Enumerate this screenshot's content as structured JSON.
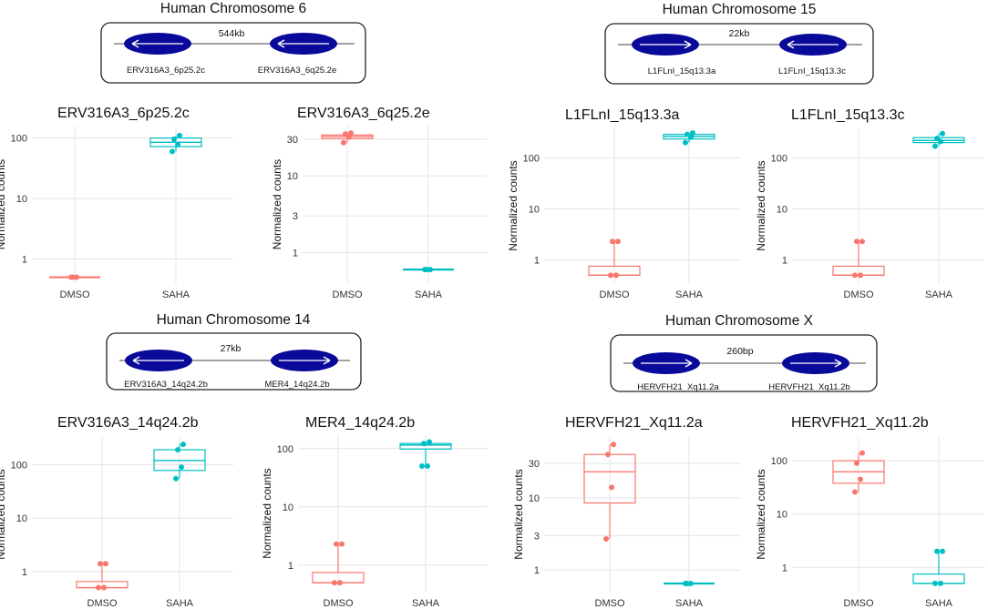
{
  "chart_data": {
    "type": "box",
    "colors": {
      "DMSO": "#F8766D",
      "SAHA": "#00BFC4",
      "element": "#0a0a9a",
      "frame": "#222222"
    },
    "chromosomes": [
      {
        "title": "Human Chromosome 6",
        "distance": "544kb",
        "elements": [
          {
            "label": "ERV316A3_6p25.2c",
            "direction": "left"
          },
          {
            "label": "ERV316A3_6q25.2e",
            "direction": "left"
          }
        ]
      },
      {
        "title": "Human Chromosome 15",
        "distance": "22kb",
        "elements": [
          {
            "label": "L1FLnI_15q13.3a",
            "direction": "right"
          },
          {
            "label": "L1FLnI_15q13.3c",
            "direction": "left"
          }
        ]
      },
      {
        "title": "Human Chromosome 14",
        "distance": "27kb",
        "elements": [
          {
            "label": "ERV316A3_14q24.2b",
            "direction": "left"
          },
          {
            "label": "MER4_14q24.2b",
            "direction": "right"
          }
        ]
      },
      {
        "title": "Human Chromosome X",
        "distance": "260bp",
        "elements": [
          {
            "label": "HERVFH21_Xq11.2a",
            "direction": "right"
          },
          {
            "label": "HERVFH21_Xq11.2b",
            "direction": "right"
          }
        ]
      }
    ],
    "panels": [
      {
        "title": "ERV316A3_6p25.2c",
        "ylabel": "Normalized counts",
        "yscale": "log10",
        "ylim": [
          0.4,
          160
        ],
        "yticks": [
          {
            "v": 1,
            "label": "1"
          },
          {
            "v": 10,
            "label": "10"
          },
          {
            "v": 100,
            "label": "100"
          }
        ],
        "categories": [
          "DMSO",
          "SAHA"
        ],
        "groups": [
          {
            "name": "DMSO",
            "min": 0.5,
            "q1": 0.5,
            "median": 0.5,
            "q3": 0.5,
            "max": 0.5,
            "points": [
              0.5,
              0.5,
              0.5
            ]
          },
          {
            "name": "SAHA",
            "min": 60,
            "q1": 72,
            "median": 85,
            "q3": 100,
            "max": 110,
            "points": [
              60,
              78,
              95,
              110
            ]
          }
        ]
      },
      {
        "title": "ERV316A3_6q25.2e",
        "ylabel": "Normalized counts",
        "yscale": "log10",
        "ylim": [
          0.4,
          45
        ],
        "yticks": [
          {
            "v": 1,
            "label": "1"
          },
          {
            "v": 3,
            "label": "3"
          },
          {
            "v": 10,
            "label": "10"
          },
          {
            "v": 30,
            "label": "30"
          }
        ],
        "categories": [
          "DMSO",
          "SAHA"
        ],
        "groups": [
          {
            "name": "DMSO",
            "min": 27,
            "q1": 30.5,
            "median": 32.5,
            "q3": 34,
            "max": 36,
            "points": [
              27,
              32,
              35,
              36
            ]
          },
          {
            "name": "SAHA",
            "min": 0.6,
            "q1": 0.6,
            "median": 0.6,
            "q3": 0.6,
            "max": 0.6,
            "points": [
              0.6,
              0.6,
              0.6
            ]
          }
        ]
      },
      {
        "title": "L1FLnI_15q13.3a",
        "ylabel": "Normalized counts",
        "yscale": "log10",
        "ylim": [
          0.35,
          380
        ],
        "yticks": [
          {
            "v": 1,
            "label": "1"
          },
          {
            "v": 10,
            "label": "10"
          },
          {
            "v": 100,
            "label": "100"
          }
        ],
        "categories": [
          "DMSO",
          "SAHA"
        ],
        "groups": [
          {
            "name": "DMSO",
            "min": 0.5,
            "q1": 0.5,
            "median": 0.5,
            "q3": 0.75,
            "max": 2.3,
            "points": [
              0.5,
              0.5,
              2.3,
              2.3
            ]
          },
          {
            "name": "SAHA",
            "min": 200,
            "q1": 235,
            "median": 265,
            "q3": 290,
            "max": 310,
            "points": [
              200,
              255,
              290,
              310
            ]
          }
        ]
      },
      {
        "title": "L1FLnI_15q13.3c",
        "ylabel": "Normalized counts",
        "yscale": "log10",
        "ylim": [
          0.35,
          380
        ],
        "yticks": [
          {
            "v": 1,
            "label": "1"
          },
          {
            "v": 10,
            "label": "10"
          },
          {
            "v": 100,
            "label": "100"
          }
        ],
        "categories": [
          "DMSO",
          "SAHA"
        ],
        "groups": [
          {
            "name": "DMSO",
            "min": 0.5,
            "q1": 0.5,
            "median": 0.5,
            "q3": 0.75,
            "max": 2.3,
            "points": [
              0.5,
              0.5,
              2.3,
              2.3
            ]
          },
          {
            "name": "SAHA",
            "min": 170,
            "q1": 200,
            "median": 220,
            "q3": 250,
            "max": 300,
            "points": [
              170,
              210,
              240,
              300
            ]
          }
        ]
      },
      {
        "title": "ERV316A3_14q24.2b",
        "ylabel": "Normalized counts",
        "yscale": "log10",
        "ylim": [
          0.42,
          330
        ],
        "yticks": [
          {
            "v": 1,
            "label": "1"
          },
          {
            "v": 10,
            "label": "10"
          },
          {
            "v": 100,
            "label": "100"
          }
        ],
        "categories": [
          "DMSO",
          "SAHA"
        ],
        "groups": [
          {
            "name": "DMSO",
            "min": 0.5,
            "q1": 0.5,
            "median": 0.5,
            "q3": 0.65,
            "max": 1.4,
            "points": [
              0.5,
              0.5,
              1.4,
              1.4
            ]
          },
          {
            "name": "SAHA",
            "min": 55,
            "q1": 78,
            "median": 120,
            "q3": 190,
            "max": 240,
            "points": [
              55,
              90,
              190,
              240
            ]
          }
        ]
      },
      {
        "title": "MER4_14q24.2b",
        "ylabel": "Normalized counts",
        "yscale": "log10",
        "ylim": [
          0.35,
          170
        ],
        "yticks": [
          {
            "v": 1,
            "label": "1"
          },
          {
            "v": 10,
            "label": "10"
          },
          {
            "v": 100,
            "label": "100"
          }
        ],
        "categories": [
          "DMSO",
          "SAHA"
        ],
        "groups": [
          {
            "name": "DMSO",
            "min": 0.5,
            "q1": 0.5,
            "median": 0.5,
            "q3": 0.75,
            "max": 2.3,
            "points": [
              0.5,
              0.5,
              2.3,
              2.3
            ]
          },
          {
            "name": "SAHA",
            "min": 50,
            "q1": 98,
            "median": 115,
            "q3": 122,
            "max": 130,
            "points": [
              50,
              50,
              122,
              130
            ]
          }
        ]
      },
      {
        "title": "HERVFH21_Xq11.2a",
        "ylabel": "Normalized counts",
        "yscale": "log10",
        "ylim": [
          0.5,
          70
        ],
        "yticks": [
          {
            "v": 1,
            "label": "1"
          },
          {
            "v": 3,
            "label": "3"
          },
          {
            "v": 10,
            "label": "10"
          },
          {
            "v": 30,
            "label": "30"
          }
        ],
        "categories": [
          "DMSO",
          "SAHA"
        ],
        "groups": [
          {
            "name": "DMSO",
            "min": 2.7,
            "q1": 8.5,
            "median": 23,
            "q3": 40,
            "max": 55,
            "points": [
              2.7,
              14,
              40,
              55
            ]
          },
          {
            "name": "SAHA",
            "min": 0.65,
            "q1": 0.65,
            "median": 0.65,
            "q3": 0.65,
            "max": 0.65,
            "points": [
              0.65,
              0.65,
              0.65
            ]
          }
        ]
      },
      {
        "title": "HERVFH21_Xq11.2b",
        "ylabel": "Normalized counts",
        "yscale": "log10",
        "ylim": [
          0.35,
          280
        ],
        "yticks": [
          {
            "v": 1,
            "label": "1"
          },
          {
            "v": 10,
            "label": "10"
          },
          {
            "v": 100,
            "label": "100"
          }
        ],
        "categories": [
          "DMSO",
          "SAHA"
        ],
        "groups": [
          {
            "name": "DMSO",
            "min": 26,
            "q1": 38,
            "median": 62,
            "q3": 100,
            "max": 140,
            "points": [
              26,
              45,
              90,
              140
            ]
          },
          {
            "name": "SAHA",
            "min": 0.5,
            "q1": 0.5,
            "median": 0.5,
            "q3": 0.75,
            "max": 2,
            "points": [
              0.5,
              0.5,
              2,
              2
            ]
          }
        ]
      }
    ]
  }
}
